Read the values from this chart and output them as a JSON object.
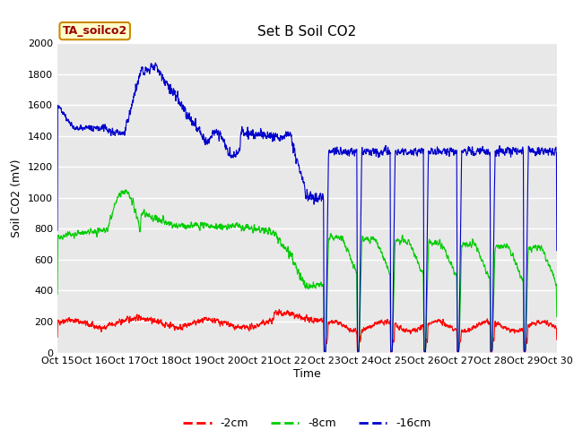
{
  "title": "Set B Soil CO2",
  "ylabel": "Soil CO2 (mV)",
  "xlabel": "Time",
  "annotation": "TA_soilco2",
  "bg_color": "#e8e8e8",
  "fig_color": "#ffffff",
  "grid_color": "#ffffff",
  "annotation_bg": "#ffffcc",
  "annotation_border": "#cc8800",
  "annotation_text_color": "#990000",
  "legend_entries": [
    "-2cm",
    "-8cm",
    "-16cm"
  ],
  "line_colors": [
    "#ff0000",
    "#00cc00",
    "#0000cc"
  ],
  "xtick_labels": [
    "Oct 15",
    "Oct 16",
    "Oct 17",
    "Oct 18",
    "Oct 19",
    "Oct 20",
    "Oct 21",
    "Oct 22",
    "Oct 23",
    "Oct 24",
    "Oct 25",
    "Oct 26",
    "Oct 27",
    "Oct 28",
    "Oct 29",
    "Oct 30"
  ],
  "ylim": [
    0,
    2000
  ],
  "xlim": [
    0,
    15
  ],
  "yticks": [
    0,
    200,
    400,
    600,
    800,
    1000,
    1200,
    1400,
    1600,
    1800,
    2000
  ],
  "title_fontsize": 11,
  "axis_fontsize": 9,
  "tick_fontsize": 8,
  "figsize": [
    6.4,
    4.8
  ],
  "dpi": 100
}
